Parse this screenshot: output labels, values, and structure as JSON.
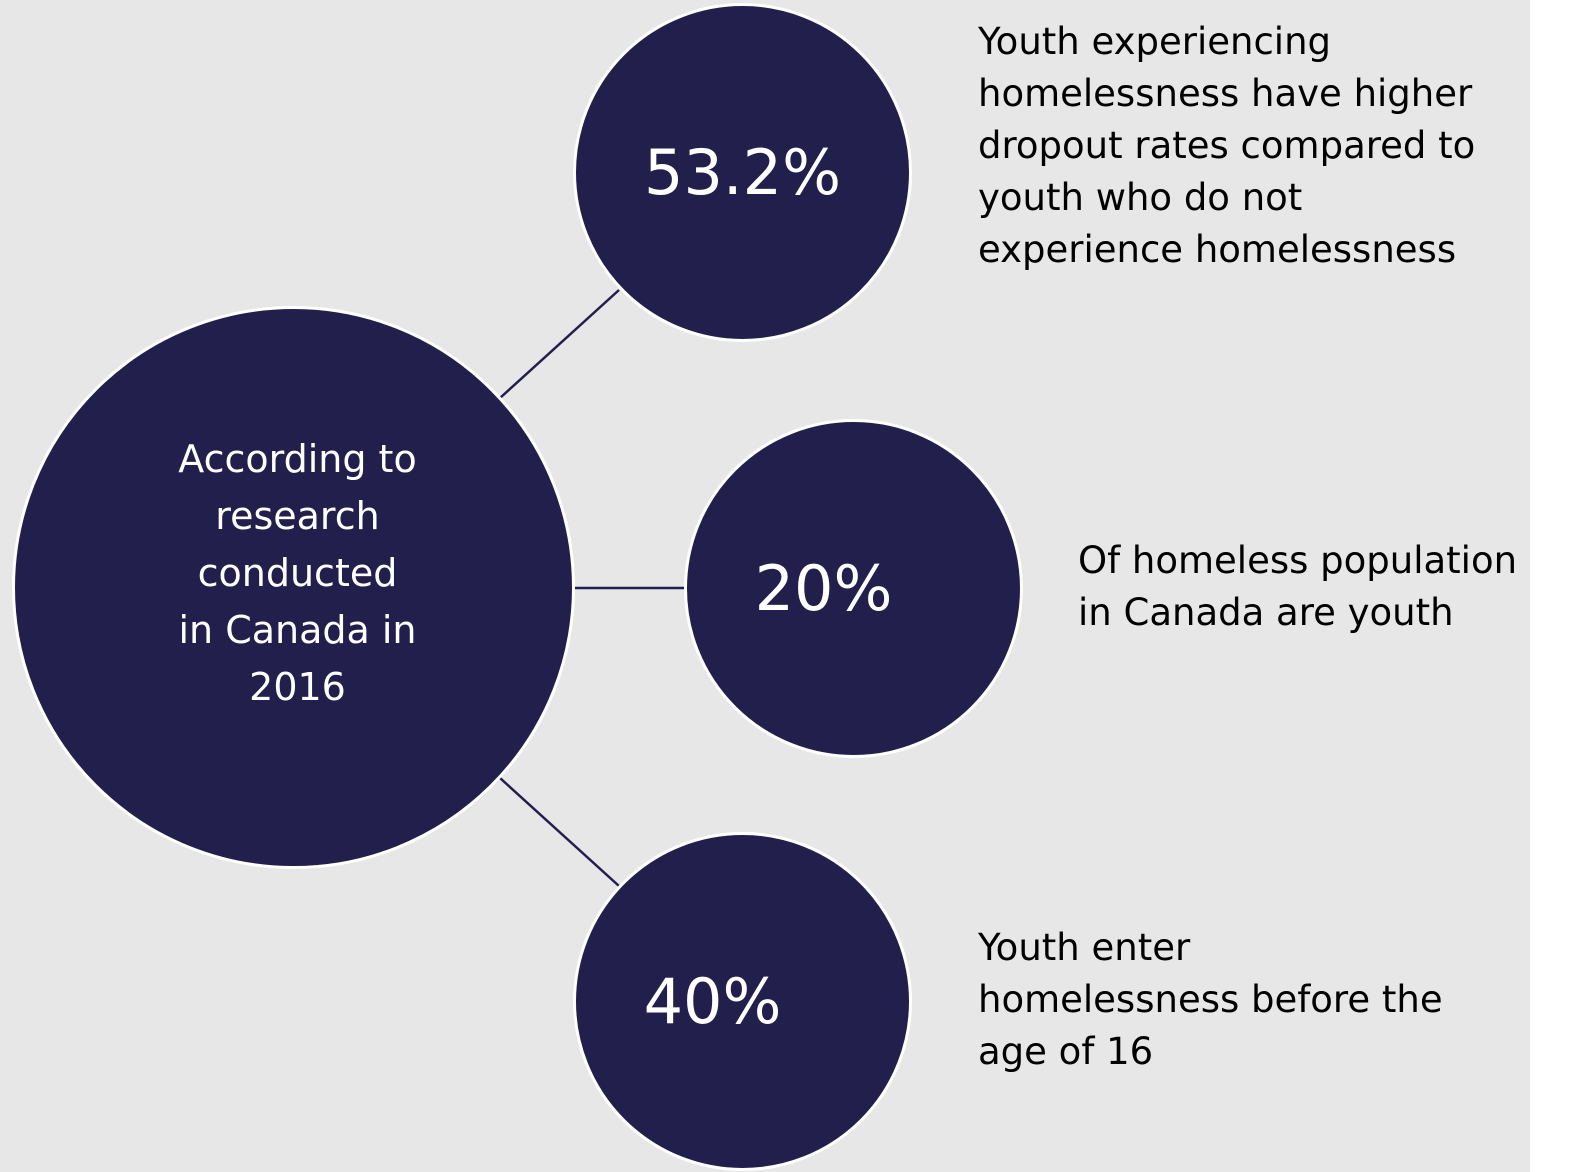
{
  "hub": {
    "text": "According to research conducted in Canada in 2016"
  },
  "stats": [
    {
      "value": "53.2%",
      "description": "Youth experiencing homelessness have higher dropout rates compared to youth who do not experience homelessness"
    },
    {
      "value": "20%",
      "description": "Of homeless population\n in Canada are youth"
    },
    {
      "value": "40%",
      "description": "Youth enter homelessness before the age of 16"
    }
  ],
  "colors": {
    "background": "#e7e7e7",
    "circle_fill": "#231f4c",
    "circle_border": "#ffffff",
    "connector": "#231f4c",
    "circle_text": "#ffffff",
    "description_text": "#000000"
  }
}
